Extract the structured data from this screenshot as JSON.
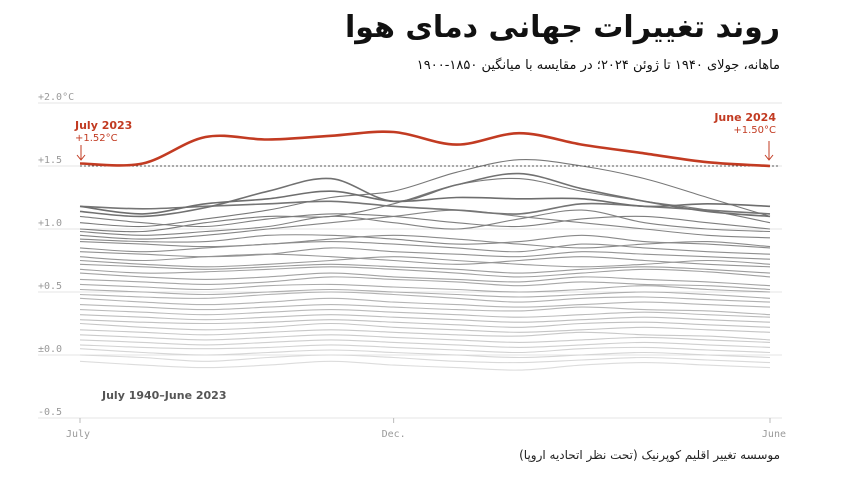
{
  "title": "روند تغییرات جهانی دمای هوا",
  "subtitle": "ماهانه، جولای ۱۹۴۰ تا ژوئن ۲۰۲۴؛ در مقایسه با میانگین ۱۸۵۰-۱۹۰۰",
  "source": "موسسه تغییر اقلیم کوپرنیک (تحت نظر اتحادیه اروپا)",
  "colors": {
    "highlight": "#c23b22",
    "recent": "#6e6e6e",
    "old": "#dcdcdc",
    "reference": "#555555"
  },
  "chart_data": {
    "type": "line",
    "ylim": [
      -0.5,
      2.0
    ],
    "y_unit": "°C",
    "y_ticks": [
      "+2.0°C",
      "+1.5",
      "+1.0",
      "+0.5",
      "±0.0",
      "-0.5"
    ],
    "y_tick_values": [
      2.0,
      1.5,
      1.0,
      0.5,
      0.0,
      -0.5
    ],
    "x_tick_labels": [
      "July",
      "Dec.",
      "June"
    ],
    "x_tick_positions": [
      0,
      5,
      11
    ],
    "months": 12,
    "reference_line": 1.5,
    "highlight_series": {
      "label_start": "July 2023",
      "value_start": "+1.52°C",
      "label_end": "June 2024",
      "value_end": "+1.50°C",
      "values": [
        1.52,
        1.52,
        1.73,
        1.71,
        1.74,
        1.77,
        1.67,
        1.76,
        1.67,
        1.6,
        1.53,
        1.5
      ]
    },
    "background_label": "July 1940–June 2023",
    "background_series": [
      [
        1.18,
        1.12,
        1.2,
        1.24,
        1.3,
        1.22,
        1.25,
        1.24,
        1.24,
        1.18,
        1.2,
        1.18
      ],
      [
        1.14,
        1.1,
        1.17,
        1.3,
        1.4,
        1.22,
        1.35,
        1.44,
        1.32,
        1.22,
        1.14,
        1.1
      ],
      [
        1.18,
        1.16,
        1.18,
        1.2,
        1.22,
        1.18,
        1.15,
        1.12,
        1.2,
        1.18,
        1.15,
        1.12
      ],
      [
        1.05,
        1.02,
        1.08,
        1.15,
        1.25,
        1.3,
        1.45,
        1.55,
        1.5,
        1.4,
        1.25,
        1.1
      ],
      [
        1.0,
        0.98,
        1.05,
        1.1,
        1.1,
        1.2,
        1.35,
        1.4,
        1.3,
        1.22,
        1.15,
        1.05
      ],
      [
        1.1,
        1.05,
        1.02,
        1.08,
        1.12,
        1.1,
        1.05,
        1.02,
        1.08,
        1.1,
        1.05,
        1.0
      ],
      [
        0.98,
        0.95,
        0.98,
        1.02,
        1.1,
        1.05,
        1.0,
        1.08,
        1.15,
        1.05,
        1.0,
        0.98
      ],
      [
        0.95,
        0.92,
        0.95,
        1.0,
        1.05,
        1.1,
        1.15,
        1.1,
        1.05,
        1.0,
        0.95,
        0.93
      ],
      [
        0.92,
        0.9,
        0.9,
        0.95,
        0.95,
        0.92,
        0.88,
        0.9,
        0.95,
        0.9,
        0.88,
        0.85
      ],
      [
        0.9,
        0.88,
        0.86,
        0.88,
        0.92,
        0.95,
        0.92,
        0.88,
        0.85,
        0.88,
        0.9,
        0.86
      ],
      [
        0.85,
        0.82,
        0.85,
        0.88,
        0.9,
        0.88,
        0.85,
        0.82,
        0.88,
        0.85,
        0.82,
        0.8
      ],
      [
        0.82,
        0.8,
        0.78,
        0.8,
        0.85,
        0.82,
        0.8,
        0.78,
        0.82,
        0.8,
        0.78,
        0.76
      ],
      [
        0.78,
        0.75,
        0.78,
        0.8,
        0.78,
        0.75,
        0.72,
        0.75,
        0.78,
        0.75,
        0.72,
        0.7
      ],
      [
        0.75,
        0.72,
        0.7,
        0.72,
        0.75,
        0.78,
        0.75,
        0.72,
        0.7,
        0.72,
        0.75,
        0.72
      ],
      [
        0.72,
        0.7,
        0.68,
        0.7,
        0.72,
        0.7,
        0.68,
        0.65,
        0.68,
        0.7,
        0.68,
        0.65
      ],
      [
        0.68,
        0.65,
        0.66,
        0.68,
        0.7,
        0.68,
        0.65,
        0.62,
        0.65,
        0.68,
        0.66,
        0.62
      ],
      [
        0.65,
        0.62,
        0.6,
        0.62,
        0.65,
        0.62,
        0.6,
        0.58,
        0.62,
        0.6,
        0.58,
        0.55
      ],
      [
        0.6,
        0.58,
        0.56,
        0.58,
        0.62,
        0.6,
        0.58,
        0.55,
        0.58,
        0.56,
        0.55,
        0.52
      ],
      [
        0.56,
        0.54,
        0.52,
        0.55,
        0.56,
        0.54,
        0.52,
        0.5,
        0.52,
        0.55,
        0.52,
        0.5
      ],
      [
        0.52,
        0.5,
        0.48,
        0.5,
        0.52,
        0.5,
        0.48,
        0.46,
        0.48,
        0.5,
        0.48,
        0.45
      ],
      [
        0.48,
        0.46,
        0.45,
        0.48,
        0.5,
        0.48,
        0.45,
        0.42,
        0.45,
        0.46,
        0.44,
        0.42
      ],
      [
        0.45,
        0.42,
        0.4,
        0.42,
        0.45,
        0.42,
        0.4,
        0.38,
        0.4,
        0.42,
        0.4,
        0.38
      ],
      [
        0.4,
        0.38,
        0.36,
        0.38,
        0.4,
        0.38,
        0.36,
        0.35,
        0.38,
        0.36,
        0.35,
        0.32
      ],
      [
        0.36,
        0.34,
        0.32,
        0.34,
        0.36,
        0.34,
        0.32,
        0.3,
        0.32,
        0.34,
        0.32,
        0.3
      ],
      [
        0.32,
        0.3,
        0.28,
        0.3,
        0.32,
        0.3,
        0.28,
        0.26,
        0.28,
        0.3,
        0.28,
        0.26
      ],
      [
        0.28,
        0.26,
        0.25,
        0.26,
        0.28,
        0.26,
        0.24,
        0.22,
        0.25,
        0.26,
        0.24,
        0.22
      ],
      [
        0.25,
        0.22,
        0.2,
        0.22,
        0.25,
        0.22,
        0.2,
        0.18,
        0.2,
        0.22,
        0.2,
        0.18
      ],
      [
        0.2,
        0.18,
        0.16,
        0.18,
        0.2,
        0.18,
        0.16,
        0.15,
        0.18,
        0.16,
        0.15,
        0.12
      ],
      [
        0.16,
        0.14,
        0.12,
        0.14,
        0.16,
        0.14,
        0.12,
        0.1,
        0.12,
        0.14,
        0.12,
        0.1
      ],
      [
        0.12,
        0.1,
        0.08,
        0.1,
        0.12,
        0.1,
        0.08,
        0.06,
        0.08,
        0.1,
        0.08,
        0.06
      ],
      [
        0.08,
        0.06,
        0.05,
        0.06,
        0.08,
        0.06,
        0.04,
        0.02,
        0.05,
        0.06,
        0.04,
        0.02
      ],
      [
        0.05,
        0.02,
        0.0,
        0.02,
        0.04,
        0.02,
        0.0,
        -0.02,
        0.0,
        0.02,
        0.0,
        -0.02
      ],
      [
        0.0,
        -0.02,
        -0.05,
        -0.02,
        0.0,
        -0.02,
        -0.05,
        -0.06,
        -0.04,
        -0.02,
        -0.04,
        -0.06
      ],
      [
        -0.05,
        -0.08,
        -0.1,
        -0.08,
        -0.05,
        -0.08,
        -0.1,
        -0.12,
        -0.08,
        -0.06,
        -0.08,
        -0.1
      ]
    ]
  }
}
